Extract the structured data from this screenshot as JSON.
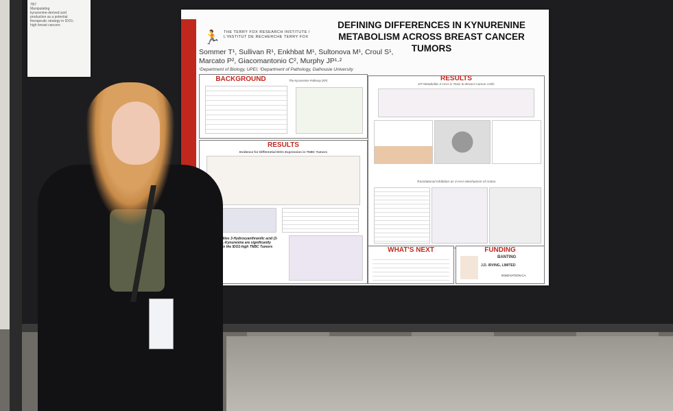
{
  "note": {
    "lines": [
      "TB7",
      "Manipulating",
      "kynurenine-derived acid",
      "production as a potential",
      "therapeutic strategy in IDO1-",
      "high breast cancers"
    ]
  },
  "poster": {
    "logo_text": "THE TERRY FOX RESEARCH INSTITUTE / L'INSTITUT DE RECHERCHE TERRY FOX",
    "title": "DEFINING DIFFERENCES IN KYNURENINE METABOLISM ACROSS BREAST CANCER TUMORS",
    "authors": "Sommer T¹, Sullivan R¹, Enkhbat M¹, Sultonova M¹, Croul S¹, Marcato P², Giacomantonio C², Murphy JP¹·²",
    "affiliations": "¹Department of Biology, UPEI; ²Department of Pathology, Dalhousie University",
    "sections": {
      "background": "BACKGROUND",
      "results_left": "RESULTS",
      "results_right": "RESULTS",
      "whats_next": "WHAT'S NEXT",
      "funding": "FUNDING"
    },
    "subheads": {
      "kp_pathway": "The Kynurenine Pathway (KP)",
      "ido1_evidence": "Evidence for Differential IDO1 Expression in TNBC Tumors",
      "kp_metabolites": "KP Metabolites 3-Hydroxyanthranilic acid (3-HAA) and L-Kynurenine are significantly increased in the IDO1-high TNBC Tumors",
      "toxic": "KP Metabolite 3-HAA is Toxic to Breast Cancer Cells",
      "translation": "Translational Inhibition as 3-HAA Mechanism of Action"
    },
    "funding_names": [
      "BANTING",
      "J.D. IRVING, LIMITED",
      "INNOVATION.CA"
    ]
  }
}
